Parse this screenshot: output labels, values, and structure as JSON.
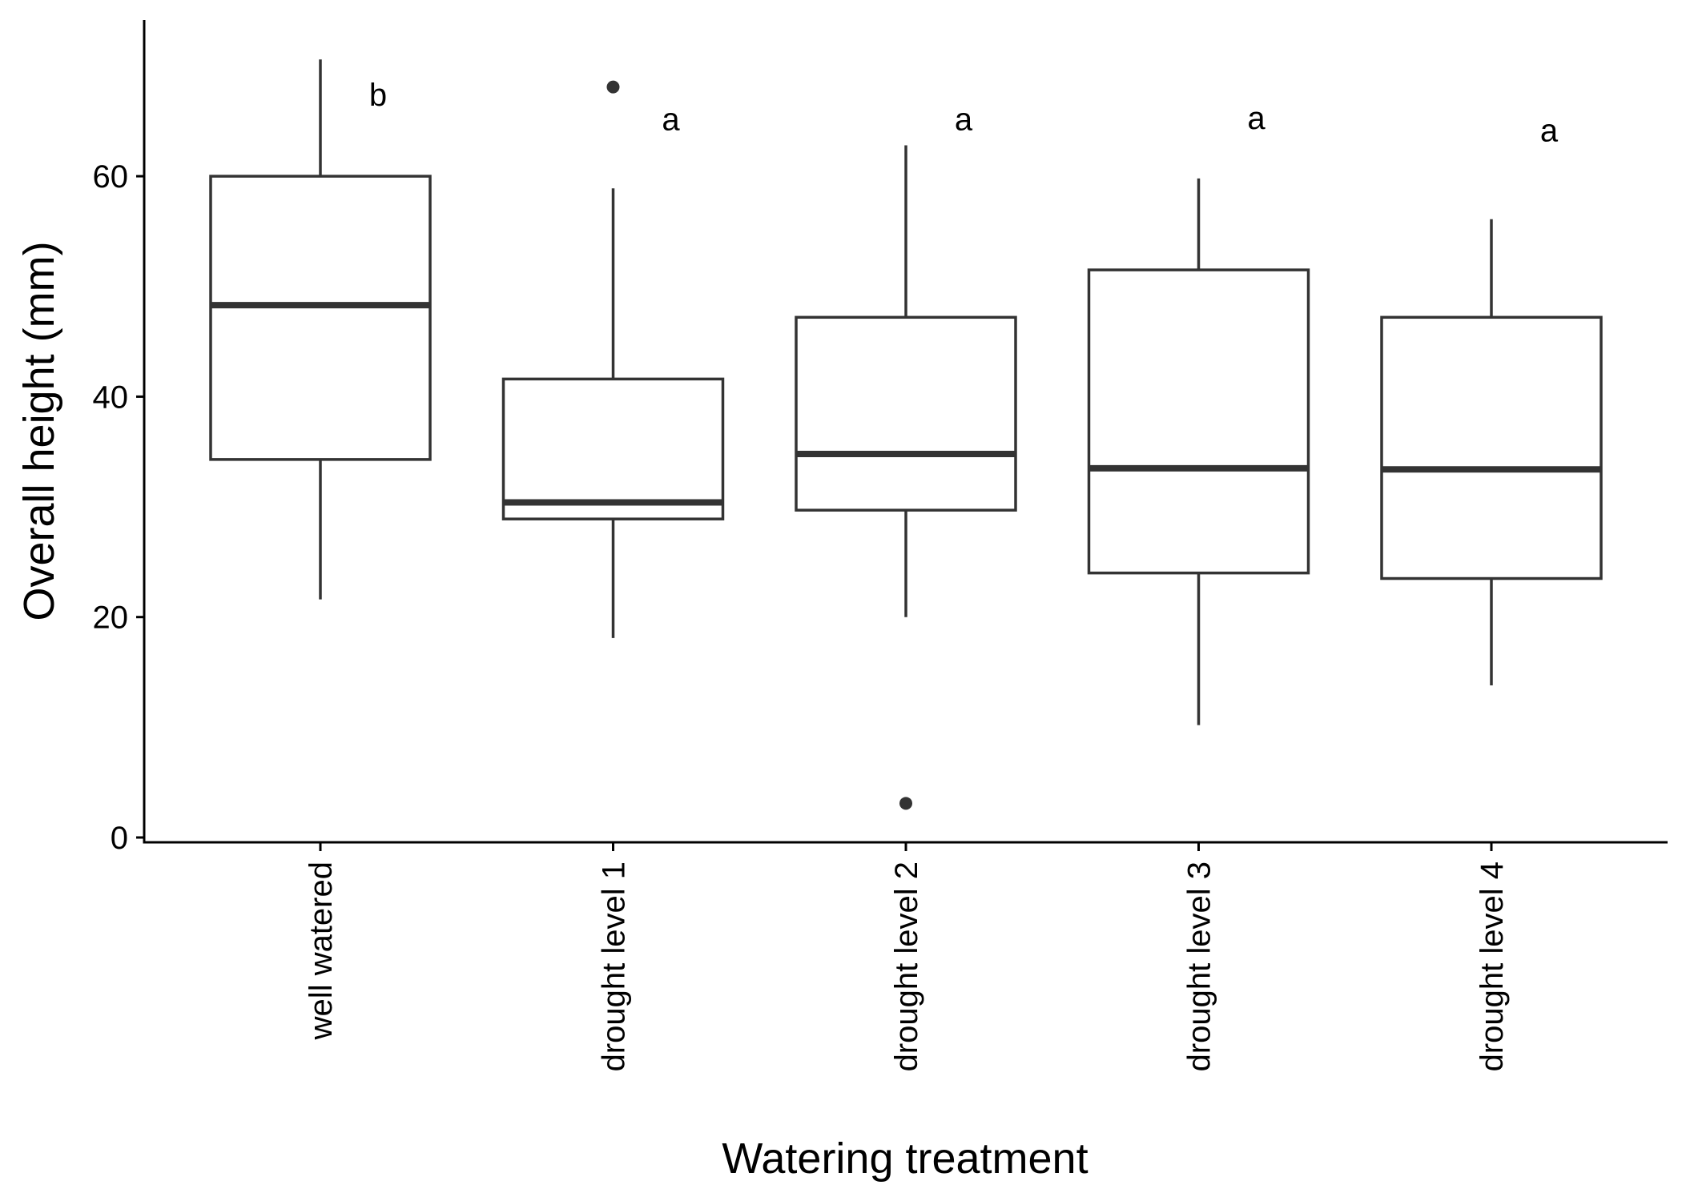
{
  "chart_data": {
    "type": "boxplot",
    "xlabel": "Watering treatment",
    "ylabel": "Overall height (mm)",
    "ylim": [
      -0.5,
      74
    ],
    "yticks": [
      0,
      20,
      40,
      60
    ],
    "grid": false,
    "categories": [
      "well watered",
      "drought level 1",
      "drought level 2",
      "drought level 3",
      "drought level 4"
    ],
    "boxes": [
      {
        "category": "well watered",
        "min": 21.6,
        "q1": 34.3,
        "median": 48.3,
        "q3": 60.0,
        "max": 70.6,
        "outliers": [],
        "letter": "b",
        "letter_y": 67.4
      },
      {
        "category": "drought level 1",
        "min": 18.1,
        "q1": 28.9,
        "median": 30.4,
        "q3": 41.6,
        "max": 58.9,
        "outliers": [
          68.1
        ],
        "letter": "a",
        "letter_y": 65.2
      },
      {
        "category": "drought level 2",
        "min": 20.0,
        "q1": 29.7,
        "median": 34.8,
        "q3": 47.2,
        "max": 62.8,
        "outliers": [
          3.1
        ],
        "letter": "a",
        "letter_y": 65.2
      },
      {
        "category": "drought level 3",
        "min": 10.2,
        "q1": 24.0,
        "median": 33.5,
        "q3": 51.5,
        "max": 59.8,
        "outliers": [],
        "letter": "a",
        "letter_y": 65.3
      },
      {
        "category": "drought level 4",
        "min": 13.8,
        "q1": 23.5,
        "median": 33.4,
        "q3": 47.2,
        "max": 56.1,
        "outliers": [],
        "letter": "a",
        "letter_y": 64.2
      }
    ]
  }
}
